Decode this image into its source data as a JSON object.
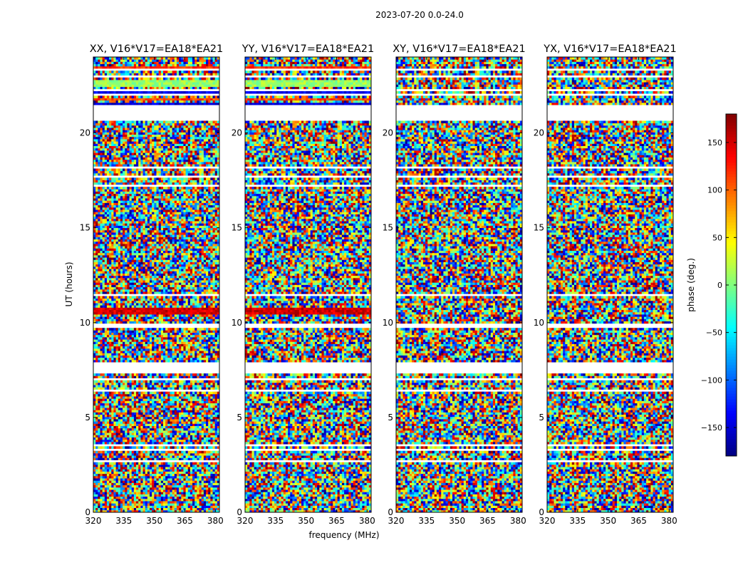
{
  "suptitle": "2023-07-20 0.0-24.0",
  "chart_data": {
    "type": "heatmap",
    "xlabel": "frequency (MHz)",
    "ylabel": "UT (hours)",
    "xlim": [
      320,
      382
    ],
    "ylim": [
      0,
      24
    ],
    "xticks": [
      320,
      335,
      350,
      365,
      380
    ],
    "yticks": [
      0,
      5,
      10,
      15,
      20
    ],
    "panels": [
      {
        "title": "XX, V16*V17=EA18*EA21"
      },
      {
        "title": "YY, V16*V17=EA18*EA21"
      },
      {
        "title": "XY, V16*V17=EA18*EA21"
      },
      {
        "title": "YX, V16*V17=EA18*EA21"
      }
    ],
    "colorbar": {
      "label": "phase (deg.)",
      "range": [
        -180,
        180
      ],
      "ticks": [
        -150,
        -100,
        -50,
        0,
        50,
        100,
        150
      ],
      "tick_labels": [
        "−150",
        "−100",
        "−50",
        "0",
        "50",
        "100",
        "150"
      ],
      "colormap": "jet"
    },
    "no_data_hours": [
      [
        2.6,
        2.75
      ],
      [
        3.25,
        3.35
      ],
      [
        3.5,
        3.6
      ],
      [
        6.35,
        6.5
      ],
      [
        6.9,
        7.05
      ],
      [
        7.3,
        7.9
      ],
      [
        9.75,
        9.9
      ],
      [
        11.35,
        11.5
      ],
      [
        16.75,
        16.85
      ],
      [
        17.2,
        17.3
      ],
      [
        17.7,
        17.8
      ],
      [
        18.1,
        18.2
      ],
      [
        20.65,
        21.45
      ],
      [
        21.95,
        22.05
      ],
      [
        22.2,
        22.35
      ],
      [
        22.95,
        23.05
      ],
      [
        23.3,
        23.4
      ]
    ],
    "notes": "Per-channel visibility phase vs frequency and UT; values mostly random noise except coherent bands in XX/YY around 10.5 h and 21-23 h"
  }
}
